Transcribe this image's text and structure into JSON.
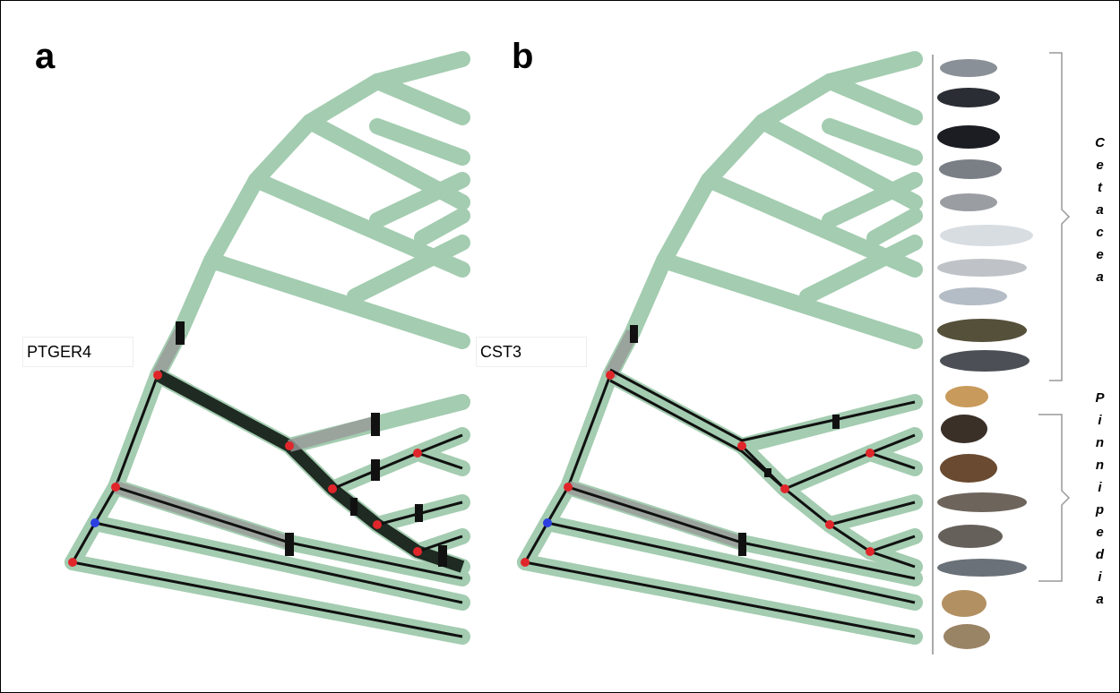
{
  "panels": [
    {
      "label": "a",
      "gene": "PTGER4"
    },
    {
      "label": "b",
      "gene": "CST3"
    }
  ],
  "clades": [
    {
      "name": "Cetacea"
    },
    {
      "name": "Pinnipedia"
    }
  ]
}
